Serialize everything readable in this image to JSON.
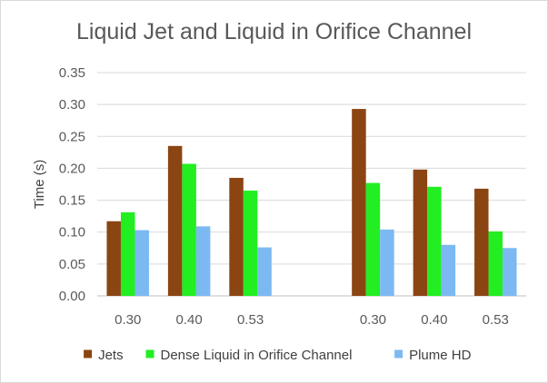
{
  "chart_data": {
    "type": "bar",
    "title": "Liquid Jet and Liquid in Orifice Channel",
    "ylabel": "Time (s)",
    "xlabel": "",
    "ylim": [
      0,
      0.35
    ],
    "yticks": [
      "0.00",
      "0.05",
      "0.10",
      "0.15",
      "0.20",
      "0.25",
      "0.30",
      "0.35"
    ],
    "categories": [
      "0.30",
      "0.40",
      "0.53",
      "",
      "0.30",
      "0.40",
      "0.53"
    ],
    "grid": true,
    "legend_position": "bottom",
    "series": [
      {
        "name": "Jets",
        "color": "#8b4513",
        "values": [
          0.117,
          0.235,
          0.185,
          null,
          0.293,
          0.198,
          0.168
        ]
      },
      {
        "name": "Dense Liquid in Orifice Channel",
        "color": "#22ee22",
        "values": [
          0.131,
          0.207,
          0.165,
          null,
          0.177,
          0.171,
          0.101
        ]
      },
      {
        "name": "Plume HD",
        "color": "#7cb9f2",
        "values": [
          0.103,
          0.109,
          0.076,
          null,
          0.104,
          0.08,
          0.075
        ]
      }
    ]
  }
}
